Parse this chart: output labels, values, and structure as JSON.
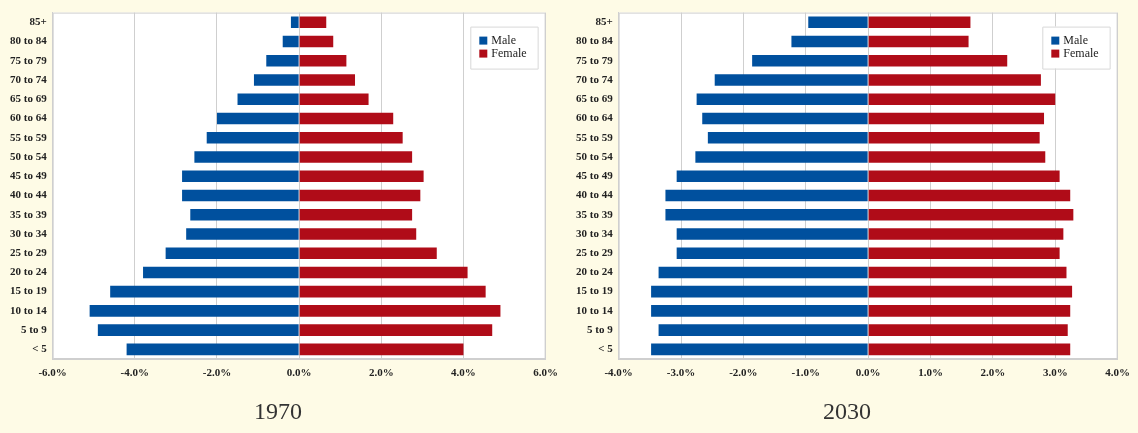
{
  "chart_data": [
    {
      "type": "bar",
      "orientation": "horizontal",
      "stacked": true,
      "title": "1970",
      "categories": [
        "85+",
        "80 to 84",
        "75 to 79",
        "70 to 74",
        "65 to 69",
        "60 to 64",
        "55 to 59",
        "50 to 54",
        "45 to 49",
        "40 to 44",
        "35 to 39",
        "30 to 34",
        "25 to 29",
        "20 to 24",
        "15 to 19",
        "10 to 14",
        "5 to 9",
        "< 5"
      ],
      "series": [
        {
          "name": "Male",
          "color": "#00509e",
          "values": [
            -0.2,
            -0.4,
            -0.8,
            -1.1,
            -1.5,
            -2.0,
            -2.25,
            -2.55,
            -2.85,
            -2.85,
            -2.65,
            -2.75,
            -3.25,
            -3.8,
            -4.6,
            -5.1,
            -4.9,
            -4.2
          ]
        },
        {
          "name": "Female",
          "color": "#b00c18",
          "values": [
            0.66,
            0.83,
            1.15,
            1.36,
            1.69,
            2.29,
            2.52,
            2.75,
            3.03,
            2.95,
            2.75,
            2.85,
            3.35,
            4.1,
            4.54,
            4.9,
            4.7,
            4.0
          ]
        }
      ],
      "xlim": [
        -6,
        6
      ],
      "xticks": [
        {
          "value": -6,
          "label": "-6.0%"
        },
        {
          "value": -4,
          "label": "-4.0%"
        },
        {
          "value": -2,
          "label": "-2.0%"
        },
        {
          "value": 0,
          "label": "0.0%"
        },
        {
          "value": 2,
          "label": "2.0%"
        },
        {
          "value": 4,
          "label": "4.0%"
        },
        {
          "value": 6,
          "label": "6.0%"
        }
      ],
      "grid": "x",
      "legend": "top right"
    },
    {
      "type": "bar",
      "orientation": "horizontal",
      "stacked": true,
      "title": "2030",
      "categories": [
        "85+",
        "80 to 84",
        "75 to 79",
        "70 to 74",
        "65 to 69",
        "60 to 64",
        "55 to 59",
        "50 to 54",
        "45 to 49",
        "40 to 44",
        "35 to 39",
        "30 to 34",
        "25 to 29",
        "20 to 24",
        "15 to 19",
        "10 to 14",
        "5 to 9",
        "< 5"
      ],
      "series": [
        {
          "name": "Male",
          "color": "#00509e",
          "values": [
            -0.96,
            -1.23,
            -1.86,
            -2.46,
            -2.75,
            -2.66,
            -2.57,
            -2.77,
            -3.07,
            -3.25,
            -3.25,
            -3.07,
            -3.07,
            -3.36,
            -3.48,
            -3.48,
            -3.36,
            -3.48
          ]
        },
        {
          "name": "Female",
          "color": "#b00c18",
          "values": [
            1.64,
            1.61,
            2.23,
            2.77,
            3.0,
            2.82,
            2.75,
            2.84,
            3.07,
            3.24,
            3.29,
            3.13,
            3.07,
            3.18,
            3.27,
            3.24,
            3.2,
            3.24
          ]
        }
      ],
      "xlim": [
        -4,
        4
      ],
      "xticks": [
        {
          "value": -4,
          "label": "-4.0%"
        },
        {
          "value": -3,
          "label": "-3.0%"
        },
        {
          "value": -2,
          "label": "-2.0%"
        },
        {
          "value": -1,
          "label": "-1.0%"
        },
        {
          "value": 0,
          "label": "0.0%"
        },
        {
          "value": 1,
          "label": "1.0%"
        },
        {
          "value": 2,
          "label": "2.0%"
        },
        {
          "value": 3,
          "label": "3.0%"
        },
        {
          "value": 4,
          "label": "4.0%"
        }
      ],
      "grid": "x",
      "legend": "top right"
    }
  ]
}
